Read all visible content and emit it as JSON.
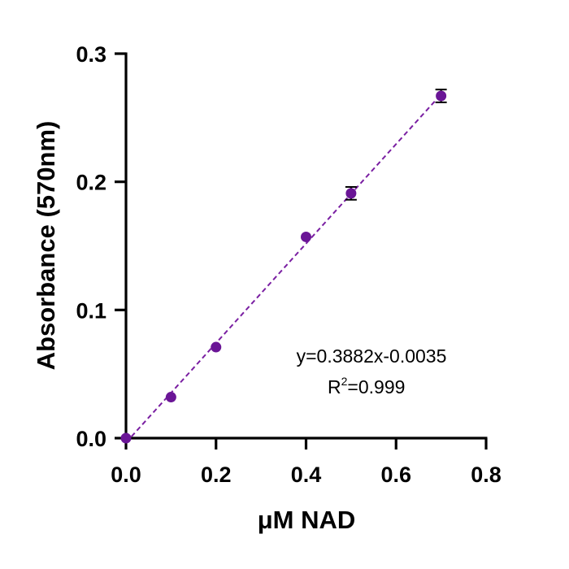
{
  "chart_data": {
    "type": "scatter",
    "xlabel": "μM NAD",
    "ylabel": "Absorbance (570nm)",
    "xlim": [
      0,
      0.8
    ],
    "ylim": [
      0,
      0.3
    ],
    "xticks": [
      0.0,
      0.2,
      0.4,
      0.6,
      0.8
    ],
    "yticks": [
      0.0,
      0.1,
      0.2,
      0.3
    ],
    "xtick_labels": [
      "0.0",
      "0.2",
      "0.4",
      "0.6",
      "0.8"
    ],
    "ytick_labels": [
      "0.0",
      "0.1",
      "0.2",
      "0.3"
    ],
    "grid": false,
    "colors": {
      "points": "#6a1596",
      "fit_line": "#7a1fa2",
      "error_bars": "#000000",
      "axes": "#000000"
    },
    "series": [
      {
        "x": [
          0.0,
          0.1,
          0.2,
          0.4,
          0.5,
          0.7
        ],
        "y": [
          0.0,
          0.032,
          0.071,
          0.157,
          0.191,
          0.267
        ],
        "error": [
          0,
          0,
          0,
          0,
          0.005,
          0.005
        ]
      }
    ],
    "fit": {
      "slope": 0.3882,
      "intercept": -0.0035,
      "style": "dashed"
    },
    "annotation": {
      "equation": "y=0.3882x-0.0035",
      "r_base": "R",
      "r_sup": "2",
      "r_value": "=0.999"
    }
  }
}
